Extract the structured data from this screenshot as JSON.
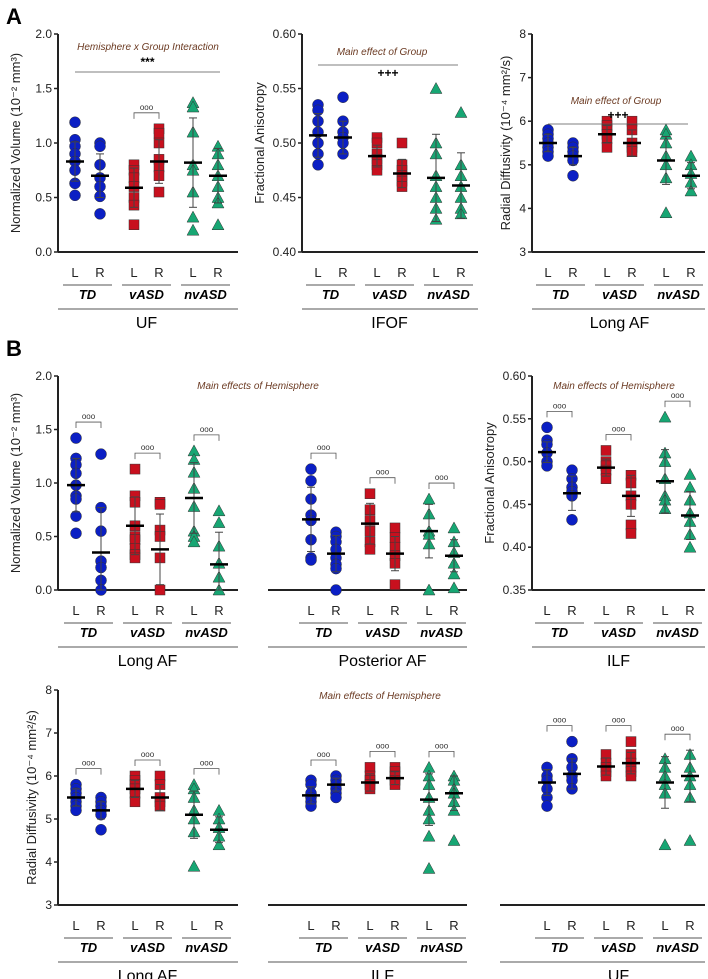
{
  "figure_labels": [
    "A",
    "B"
  ],
  "colors": {
    "TD": "#0b1fc4",
    "vASD": "#c8101e",
    "nvASD": "#17a673",
    "axis": "#222222",
    "annotation": "#6b3a22"
  },
  "sides": [
    "L",
    "R"
  ],
  "groups": [
    "TD",
    "vASD",
    "nvASD"
  ],
  "chart_data": [
    {
      "type": "scatter",
      "id": "A1",
      "tract": "UF",
      "ylabel": "Normalized Volume (10⁻² mm³)",
      "ylim": [
        0,
        2.0
      ],
      "ticks": [
        "0.0",
        "0.5",
        "1.0",
        "1.5",
        "2.0"
      ],
      "annotation": "Hemisphere x Group Interaction",
      "sig": "***",
      "brackets": [
        false,
        true,
        false
      ],
      "bracket_label": "ooo",
      "series": [
        {
          "group": "TD",
          "side": "L",
          "values": [
            1.19,
            1.03,
            0.97,
            0.9,
            0.83,
            0.75,
            0.63,
            0.52
          ],
          "mean": 0.83,
          "sd": 0.18
        },
        {
          "group": "TD",
          "side": "R",
          "values": [
            1.0,
            0.97,
            0.8,
            0.68,
            0.6,
            0.51,
            0.35
          ],
          "mean": 0.7,
          "sd": 0.2
        },
        {
          "group": "vASD",
          "side": "L",
          "values": [
            0.8,
            0.75,
            0.68,
            0.6,
            0.5,
            0.43,
            0.25
          ],
          "mean": 0.59,
          "sd": 0.18
        },
        {
          "group": "vASD",
          "side": "R",
          "values": [
            1.13,
            1.09,
            1.0,
            0.85,
            0.78,
            0.7,
            0.55
          ],
          "mean": 0.83,
          "sd": 0.2
        },
        {
          "group": "nvASD",
          "side": "L",
          "values": [
            1.37,
            1.33,
            1.1,
            0.8,
            0.75,
            0.55,
            0.32,
            0.2
          ],
          "mean": 0.82,
          "sd": 0.41
        },
        {
          "group": "nvASD",
          "side": "R",
          "values": [
            0.97,
            0.9,
            0.8,
            0.7,
            0.6,
            0.5,
            0.45,
            0.25
          ],
          "mean": 0.7,
          "sd": 0.25
        }
      ]
    },
    {
      "type": "scatter",
      "id": "A2",
      "tract": "IFOF",
      "ylabel": "Fractional Anisotropy",
      "ylim": [
        0.4,
        0.6
      ],
      "ticks": [
        "0.40",
        "0.45",
        "0.50",
        "0.55",
        "0.60"
      ],
      "annotation": "Main effect of Group",
      "sig": "+++",
      "brackets": [
        false,
        false,
        false
      ],
      "bracket_label": "ooo",
      "series": [
        {
          "group": "TD",
          "side": "L",
          "values": [
            0.535,
            0.53,
            0.52,
            0.51,
            0.5,
            0.49,
            0.48
          ],
          "mean": 0.507,
          "sd": 0.02
        },
        {
          "group": "TD",
          "side": "R",
          "values": [
            0.542,
            0.52,
            0.51,
            0.505,
            0.5,
            0.49
          ],
          "mean": 0.505,
          "sd": 0.015
        },
        {
          "group": "vASD",
          "side": "L",
          "values": [
            0.505,
            0.5,
            0.49,
            0.485,
            0.48,
            0.475
          ],
          "mean": 0.488,
          "sd": 0.01
        },
        {
          "group": "vASD",
          "side": "R",
          "values": [
            0.5,
            0.48,
            0.475,
            0.47,
            0.465,
            0.46
          ],
          "mean": 0.472,
          "sd": 0.013
        },
        {
          "group": "nvASD",
          "side": "L",
          "values": [
            0.55,
            0.5,
            0.49,
            0.47,
            0.46,
            0.45,
            0.44,
            0.43
          ],
          "mean": 0.468,
          "sd": 0.04
        },
        {
          "group": "nvASD",
          "side": "R",
          "values": [
            0.528,
            0.48,
            0.47,
            0.46,
            0.45,
            0.44,
            0.435
          ],
          "mean": 0.461,
          "sd": 0.03
        }
      ]
    },
    {
      "type": "scatter",
      "id": "A3",
      "tract": "Long AF",
      "ylabel": "Radial Diffusivity (10⁻⁴ mm²/s)",
      "ylim": [
        3,
        8
      ],
      "ticks": [
        "3",
        "4",
        "5",
        "6",
        "7",
        "8"
      ],
      "annotation": "Main effect of Group",
      "sig": "+++",
      "brackets": [
        false,
        false,
        false
      ],
      "bracket_label": "ooo",
      "series": [
        {
          "group": "TD",
          "side": "L",
          "values": [
            5.8,
            5.7,
            5.6,
            5.5,
            5.4,
            5.3,
            5.2
          ],
          "mean": 5.5,
          "sd": 0.2
        },
        {
          "group": "TD",
          "side": "R",
          "values": [
            5.5,
            5.4,
            5.3,
            5.2,
            5.1,
            4.75
          ],
          "mean": 5.2,
          "sd": 0.2
        },
        {
          "group": "vASD",
          "side": "L",
          "values": [
            6.0,
            5.9,
            5.8,
            5.7,
            5.6,
            5.4
          ],
          "mean": 5.7,
          "sd": 0.2
        },
        {
          "group": "vASD",
          "side": "R",
          "values": [
            6.0,
            5.8,
            5.5,
            5.4,
            5.3
          ],
          "mean": 5.5,
          "sd": 0.3
        },
        {
          "group": "nvASD",
          "side": "L",
          "values": [
            5.8,
            5.7,
            5.5,
            5.2,
            5.0,
            4.7,
            3.9
          ],
          "mean": 5.1,
          "sd": 0.55
        },
        {
          "group": "nvASD",
          "side": "R",
          "values": [
            5.2,
            5.0,
            4.8,
            4.6,
            4.4
          ],
          "mean": 4.75,
          "sd": 0.3
        }
      ]
    },
    {
      "type": "scatter",
      "id": "B1",
      "tract": "Long AF",
      "ylabel": "Normalized Volume (10⁻² mm³)",
      "ylim": [
        0,
        2.0
      ],
      "ticks": [
        "0.0",
        "0.5",
        "1.0",
        "1.5",
        "2.0"
      ],
      "annotation": "Main effects of Hemisphere",
      "sig": "",
      "brackets": [
        true,
        true,
        true
      ],
      "bracket_label": "ooo",
      "series": [
        {
          "group": "TD",
          "side": "L",
          "values": [
            1.42,
            1.23,
            1.17,
            1.09,
            0.98,
            0.88,
            0.85,
            0.69,
            0.53
          ],
          "mean": 0.98,
          "sd": 0.25
        },
        {
          "group": "TD",
          "side": "R",
          "values": [
            1.27,
            0.77,
            0.55,
            0.27,
            0.21,
            0.09,
            0.0
          ],
          "mean": 0.35,
          "sd": 0.42
        },
        {
          "group": "vASD",
          "side": "L",
          "values": [
            1.13,
            0.88,
            0.82,
            0.6,
            0.5,
            0.47,
            0.39,
            0.33,
            0.3
          ],
          "mean": 0.6,
          "sd": 0.27
        },
        {
          "group": "vASD",
          "side": "R",
          "values": [
            0.82,
            0.8,
            0.56,
            0.5,
            0.3,
            0.0
          ],
          "mean": 0.38,
          "sd": 0.33
        },
        {
          "group": "nvASD",
          "side": "L",
          "values": [
            1.3,
            1.22,
            1.1,
            0.95,
            0.78,
            0.55,
            0.5,
            0.45
          ],
          "mean": 0.86,
          "sd": 0.33
        },
        {
          "group": "nvASD",
          "side": "R",
          "values": [
            0.74,
            0.63,
            0.41,
            0.25,
            0.12,
            0.0
          ],
          "mean": 0.24,
          "sd": 0.3
        }
      ]
    },
    {
      "type": "scatter",
      "id": "B2",
      "tract": "Posterior AF",
      "ylabel": "",
      "ylim": [
        0,
        2.0
      ],
      "ticks": [],
      "annotation": "",
      "sig": "",
      "brackets": [
        true,
        true,
        true
      ],
      "bracket_label": "ooo",
      "series": [
        {
          "group": "TD",
          "side": "L",
          "values": [
            1.13,
            1.02,
            0.85,
            0.7,
            0.65,
            0.47,
            0.3,
            0.28
          ],
          "mean": 0.66,
          "sd": 0.3
        },
        {
          "group": "TD",
          "side": "R",
          "values": [
            0.54,
            0.5,
            0.45,
            0.38,
            0.3,
            0.24,
            0.2,
            0.0
          ],
          "mean": 0.34,
          "sd": 0.17
        },
        {
          "group": "vASD",
          "side": "L",
          "values": [
            0.9,
            0.75,
            0.65,
            0.55,
            0.45,
            0.38
          ],
          "mean": 0.62,
          "sd": 0.19
        },
        {
          "group": "vASD",
          "side": "R",
          "values": [
            0.58,
            0.49,
            0.4,
            0.32,
            0.25,
            0.05
          ],
          "mean": 0.34,
          "sd": 0.16
        },
        {
          "group": "nvASD",
          "side": "L",
          "values": [
            0.85,
            0.71,
            0.55,
            0.52,
            0.43,
            0.0
          ],
          "mean": 0.55,
          "sd": 0.25
        },
        {
          "group": "nvASD",
          "side": "R",
          "values": [
            0.58,
            0.45,
            0.35,
            0.25,
            0.15,
            0.02
          ],
          "mean": 0.32,
          "sd": 0.15
        }
      ]
    },
    {
      "type": "scatter",
      "id": "B3",
      "tract": "ILF",
      "ylabel": "Fractional Anisotropy",
      "ylim": [
        0.35,
        0.6
      ],
      "ticks": [
        "0.35",
        "0.40",
        "0.45",
        "0.50",
        "0.55",
        "0.60"
      ],
      "annotation": "Main effects of Hemisphere",
      "sig": "",
      "brackets": [
        true,
        true,
        true
      ],
      "bracket_label": "ooo",
      "series": [
        {
          "group": "TD",
          "side": "L",
          "values": [
            0.54,
            0.525,
            0.52,
            0.51,
            0.5,
            0.495
          ],
          "mean": 0.511,
          "sd": 0.012
        },
        {
          "group": "TD",
          "side": "R",
          "values": [
            0.49,
            0.48,
            0.47,
            0.465,
            0.46,
            0.432
          ],
          "mean": 0.463,
          "sd": 0.02
        },
        {
          "group": "vASD",
          "side": "L",
          "values": [
            0.513,
            0.5,
            0.495,
            0.49,
            0.48
          ],
          "mean": 0.493,
          "sd": 0.01
        },
        {
          "group": "vASD",
          "side": "R",
          "values": [
            0.484,
            0.475,
            0.46,
            0.45,
            0.426,
            0.416
          ],
          "mean": 0.46,
          "sd": 0.024
        },
        {
          "group": "nvASD",
          "side": "L",
          "values": [
            0.552,
            0.51,
            0.5,
            0.48,
            0.46,
            0.455,
            0.445
          ],
          "mean": 0.477,
          "sd": 0.037
        },
        {
          "group": "nvASD",
          "side": "R",
          "values": [
            0.485,
            0.47,
            0.455,
            0.44,
            0.43,
            0.415,
            0.4
          ],
          "mean": 0.437,
          "sd": 0.028
        }
      ]
    },
    {
      "type": "scatter",
      "id": "C1",
      "tract": "Long AF",
      "ylabel": "Radial Diffusivity (10⁻⁴ mm²/s)",
      "ylim": [
        3,
        8
      ],
      "ticks": [
        "3",
        "4",
        "5",
        "6",
        "7",
        "8"
      ],
      "annotation": "",
      "sig": "",
      "brackets": [
        true,
        true,
        true
      ],
      "bracket_label": "ooo",
      "series": [
        {
          "group": "TD",
          "side": "L",
          "values": [
            5.8,
            5.7,
            5.6,
            5.5,
            5.4,
            5.3,
            5.2
          ],
          "mean": 5.5,
          "sd": 0.2
        },
        {
          "group": "TD",
          "side": "R",
          "values": [
            5.5,
            5.4,
            5.3,
            5.2,
            5.1,
            4.75
          ],
          "mean": 5.2,
          "sd": 0.2
        },
        {
          "group": "vASD",
          "side": "L",
          "values": [
            6.0,
            5.9,
            5.8,
            5.7,
            5.6,
            5.4
          ],
          "mean": 5.7,
          "sd": 0.2
        },
        {
          "group": "vASD",
          "side": "R",
          "values": [
            6.0,
            5.8,
            5.5,
            5.4,
            5.3
          ],
          "mean": 5.5,
          "sd": 0.3
        },
        {
          "group": "nvASD",
          "side": "L",
          "values": [
            5.8,
            5.7,
            5.5,
            5.2,
            5.0,
            4.7,
            3.9
          ],
          "mean": 5.1,
          "sd": 0.55
        },
        {
          "group": "nvASD",
          "side": "R",
          "values": [
            5.2,
            5.0,
            4.8,
            4.6,
            4.4
          ],
          "mean": 4.75,
          "sd": 0.3
        }
      ]
    },
    {
      "type": "scatter",
      "id": "C2",
      "tract": "ILF",
      "ylabel": "",
      "ylim": [
        3,
        8
      ],
      "ticks": [],
      "annotation": "Main effects of Hemisphere",
      "sig": "",
      "brackets": [
        true,
        true,
        true
      ],
      "bracket_label": "ooo",
      "series": [
        {
          "group": "TD",
          "side": "L",
          "values": [
            5.9,
            5.8,
            5.6,
            5.5,
            5.4,
            5.3
          ],
          "mean": 5.55,
          "sd": 0.2
        },
        {
          "group": "TD",
          "side": "R",
          "values": [
            6.0,
            5.9,
            5.8,
            5.7,
            5.6,
            5.5
          ],
          "mean": 5.8,
          "sd": 0.15
        },
        {
          "group": "vASD",
          "side": "L",
          "values": [
            6.2,
            6.0,
            5.9,
            5.8,
            5.7
          ],
          "mean": 5.85,
          "sd": 0.2
        },
        {
          "group": "vASD",
          "side": "R",
          "values": [
            6.2,
            6.1,
            6.0,
            5.9,
            5.8
          ],
          "mean": 5.95,
          "sd": 0.15
        },
        {
          "group": "nvASD",
          "side": "L",
          "values": [
            6.2,
            6.0,
            5.8,
            5.5,
            5.2,
            5.0,
            4.6,
            3.85
          ],
          "mean": 5.45,
          "sd": 0.6
        },
        {
          "group": "nvASD",
          "side": "R",
          "values": [
            6.0,
            5.9,
            5.7,
            5.6,
            5.4,
            5.2,
            4.5
          ],
          "mean": 5.6,
          "sd": 0.4
        }
      ]
    },
    {
      "type": "scatter",
      "id": "C3",
      "tract": "UF",
      "ylabel": "",
      "ylim": [
        3,
        8
      ],
      "ticks": [],
      "annotation": "",
      "sig": "",
      "brackets": [
        true,
        true,
        true
      ],
      "bracket_label": "ooo",
      "series": [
        {
          "group": "TD",
          "side": "L",
          "values": [
            6.2,
            6.0,
            5.9,
            5.7,
            5.5,
            5.3
          ],
          "mean": 5.85,
          "sd": 0.3
        },
        {
          "group": "TD",
          "side": "R",
          "values": [
            6.8,
            6.4,
            6.2,
            6.0,
            5.9,
            5.7
          ],
          "mean": 6.05,
          "sd": 0.35
        },
        {
          "group": "vASD",
          "side": "L",
          "values": [
            6.5,
            6.3,
            6.2,
            6.1,
            6.0
          ],
          "mean": 6.22,
          "sd": 0.2
        },
        {
          "group": "vASD",
          "side": "R",
          "values": [
            6.8,
            6.5,
            6.3,
            6.2,
            6.1,
            6.0
          ],
          "mean": 6.3,
          "sd": 0.25
        },
        {
          "group": "nvASD",
          "side": "L",
          "values": [
            6.4,
            6.2,
            6.0,
            5.8,
            5.6,
            4.4
          ],
          "mean": 5.85,
          "sd": 0.6
        },
        {
          "group": "nvASD",
          "side": "R",
          "values": [
            6.5,
            6.2,
            6.0,
            5.8,
            5.5,
            4.5
          ],
          "mean": 6.0,
          "sd": 0.6
        }
      ]
    }
  ]
}
